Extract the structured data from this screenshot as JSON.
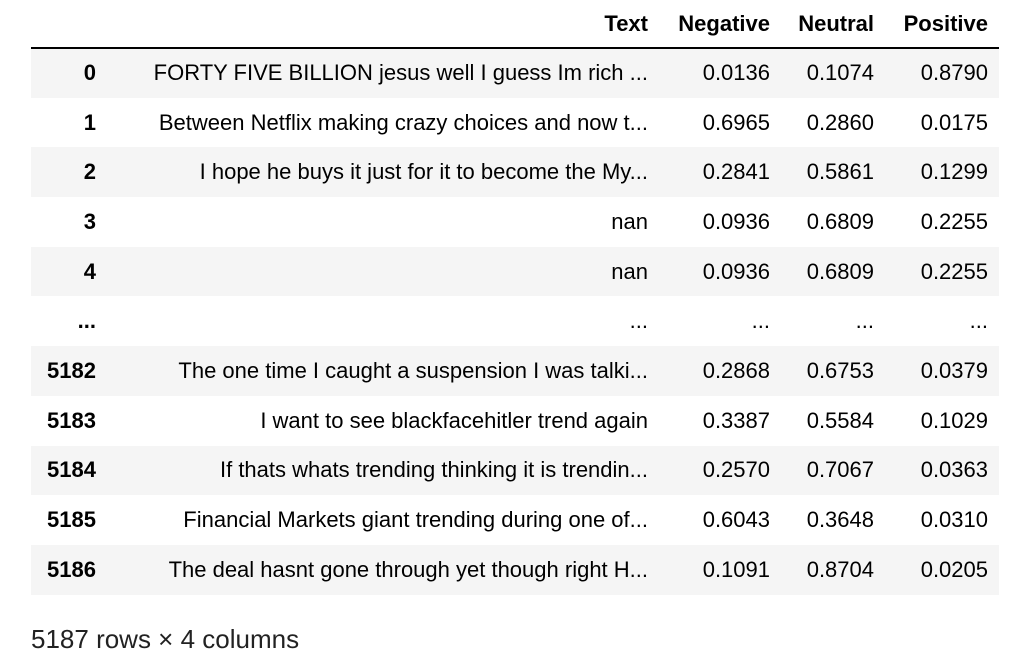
{
  "table": {
    "columns": [
      "",
      "Text",
      "Negative",
      "Neutral",
      "Positive"
    ],
    "rows": [
      {
        "index": "0",
        "text": "FORTY FIVE BILLION jesus well I guess Im rich ...",
        "negative": "0.0136",
        "neutral": "0.1074",
        "positive": "0.8790"
      },
      {
        "index": "1",
        "text": "Between Netflix making crazy choices and now t...",
        "negative": "0.6965",
        "neutral": "0.2860",
        "positive": "0.0175"
      },
      {
        "index": "2",
        "text": "I hope he buys it just for it to become the My...",
        "negative": "0.2841",
        "neutral": "0.5861",
        "positive": "0.1299"
      },
      {
        "index": "3",
        "text": "nan",
        "negative": "0.0936",
        "neutral": "0.6809",
        "positive": "0.2255"
      },
      {
        "index": "4",
        "text": "nan",
        "negative": "0.0936",
        "neutral": "0.6809",
        "positive": "0.2255"
      },
      {
        "index": "...",
        "text": "...",
        "negative": "...",
        "neutral": "...",
        "positive": "..."
      },
      {
        "index": "5182",
        "text": "The one time I caught a suspension I was talki...",
        "negative": "0.2868",
        "neutral": "0.6753",
        "positive": "0.0379"
      },
      {
        "index": "5183",
        "text": "I want to see blackfacehitler trend again",
        "negative": "0.3387",
        "neutral": "0.5584",
        "positive": "0.1029"
      },
      {
        "index": "5184",
        "text": "If thats whats trending thinking it is trendin...",
        "negative": "0.2570",
        "neutral": "0.7067",
        "positive": "0.0363"
      },
      {
        "index": "5185",
        "text": "Financial Markets giant trending during one of...",
        "negative": "0.6043",
        "neutral": "0.3648",
        "positive": "0.0310"
      },
      {
        "index": "5186",
        "text": "The deal hasnt gone through yet though right H...",
        "negative": "0.1091",
        "neutral": "0.8704",
        "positive": "0.0205"
      }
    ]
  },
  "shape_caption": "5187 rows × 4 columns",
  "colors": {
    "stripe": "#f5f5f5",
    "header_rule": "#000000",
    "text": "#000000"
  }
}
